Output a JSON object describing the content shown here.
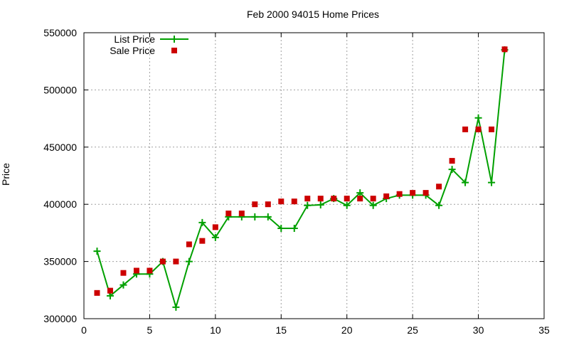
{
  "chart_data": {
    "type": "line",
    "title": "Feb 2000 94015 Home Prices",
    "xlabel": "",
    "ylabel": "Price",
    "xlim": [
      0,
      35
    ],
    "ylim": [
      300000,
      550000
    ],
    "xticks": [
      0,
      5,
      10,
      15,
      20,
      25,
      30,
      35
    ],
    "yticks": [
      300000,
      350000,
      400000,
      450000,
      500000,
      550000
    ],
    "grid": true,
    "legend_position": "top-left",
    "x": [
      1,
      2,
      3,
      4,
      5,
      6,
      7,
      8,
      9,
      10,
      11,
      12,
      13,
      14,
      15,
      16,
      17,
      18,
      19,
      20,
      21,
      22,
      23,
      24,
      25,
      26,
      27,
      28,
      29,
      30,
      31,
      32
    ],
    "series": [
      {
        "name": "List Price",
        "style": "line+cross",
        "color": "#00a000",
        "values": [
          359000,
          320000,
          329500,
          339000,
          339000,
          350000,
          310000,
          350000,
          384000,
          371000,
          389000,
          389000,
          389000,
          389000,
          379000,
          379000,
          399000,
          399500,
          405000,
          399000,
          410000,
          399000,
          405000,
          408000,
          408000,
          408000,
          399000,
          430500,
          419000,
          475500,
          419000,
          535000
        ]
      },
      {
        "name": "Sale Price",
        "style": "square-markers",
        "color": "#cc0000",
        "values": [
          322500,
          324500,
          340000,
          342000,
          342000,
          350000,
          350000,
          365000,
          368000,
          380000,
          392000,
          392000,
          400000,
          400000,
          402500,
          402500,
          405000,
          405000,
          405000,
          405000,
          405000,
          405000,
          407000,
          409000,
          410000,
          410000,
          415500,
          438000,
          465500,
          465500,
          465500,
          535500
        ]
      }
    ]
  }
}
